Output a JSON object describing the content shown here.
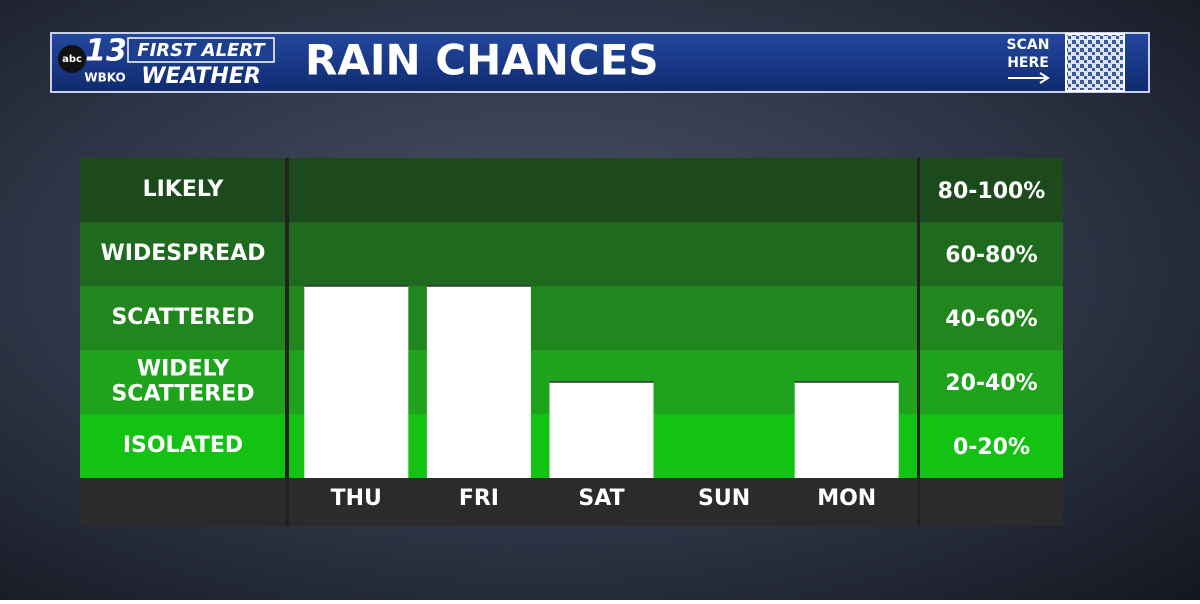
{
  "header": {
    "network": "abc",
    "channel": "13",
    "station": "WBKO",
    "brand_top": "FIRST ALERT",
    "brand_bottom": "WEATHER",
    "title": "RAIN CHANCES",
    "scan": "SCAN",
    "here": "HERE"
  },
  "chart_data": {
    "type": "bar",
    "categories": [
      "THU",
      "FRI",
      "SAT",
      "SUN",
      "MON"
    ],
    "values": [
      60,
      60,
      30,
      0,
      30
    ],
    "color": "#ffffff",
    "ylim": [
      0,
      100
    ],
    "bands": [
      {
        "name": "LIKELY",
        "range": "80-100%",
        "color": "#1c4a1c"
      },
      {
        "name": "WIDESPREAD",
        "range": "60-80%",
        "color": "#1e6a1e"
      },
      {
        "name": "SCATTERED",
        "range": "40-60%",
        "color": "#22861f"
      },
      {
        "name": "WIDELY SCATTERED",
        "range": "20-40%",
        "color": "#1fa21c"
      },
      {
        "name": "ISOLATED",
        "range": "0-20%",
        "color": "#14c214"
      }
    ]
  }
}
